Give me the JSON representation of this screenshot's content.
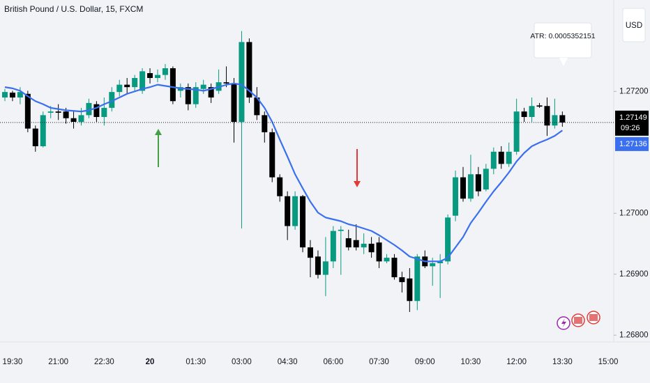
{
  "chart_data": {
    "type": "candlestick",
    "title": "British Pound / U.S. Dollar, 15, FXCM",
    "currency": "USD",
    "annotation": "ATR: 0.0005352151",
    "countdown": "09:26",
    "categories": [
      null,
      "19:30",
      null,
      null,
      null,
      null,
      null,
      "21:00",
      null,
      null,
      null,
      null,
      null,
      "22:30",
      null,
      null,
      null,
      null,
      null,
      "20",
      null,
      null,
      null,
      null,
      null,
      "01:30",
      null,
      null,
      null,
      null,
      null,
      "03:00",
      null,
      null,
      null,
      null,
      null,
      "04:30",
      null,
      null,
      null,
      null,
      null,
      "06:00",
      null,
      null,
      null,
      null,
      null,
      "07:30",
      null,
      null,
      null,
      null,
      null,
      "09:00",
      null,
      null,
      null,
      null,
      null,
      "10:30",
      null,
      null,
      null,
      null,
      null,
      "12:00",
      null,
      null,
      null,
      null,
      null,
      "13:30",
      null,
      null,
      null,
      null,
      null,
      "15:00"
    ],
    "series": [
      {
        "type": "candlestick",
        "up_color": "#089981",
        "down_color": "#000000",
        "open": [
          1.2719,
          1.27198,
          1.2719,
          1.27196,
          1.27139,
          1.2711,
          1.27165,
          1.27167,
          1.27167,
          1.27156,
          1.2715,
          1.27161,
          1.27179,
          1.27158,
          1.27173,
          1.27199,
          1.27211,
          1.27207,
          1.27201,
          1.2723,
          1.27222,
          1.27227,
          1.27238,
          1.27201,
          1.27207,
          1.27179,
          1.27204,
          1.27207,
          1.27201,
          1.27215,
          1.27213,
          1.2715,
          1.27281,
          1.2719,
          1.27161,
          1.27133,
          1.27059,
          1.27028,
          1.26979,
          1.27028,
          1.26944,
          1.26929,
          1.26899,
          1.26921,
          1.26971,
          1.26959,
          1.26956,
          1.26944,
          1.2695,
          1.26952,
          1.26921,
          1.26927,
          1.26895,
          1.26893,
          1.26856,
          1.26929,
          1.26913,
          1.26918,
          1.26921,
          1.26996,
          1.27059,
          1.27024,
          1.27064,
          1.27039,
          1.27073,
          1.27101,
          1.27081,
          1.27101,
          1.27167,
          1.27158,
          1.27177,
          1.27176,
          1.27144,
          1.27161,
          null,
          null,
          null,
          null,
          null,
          null
        ],
        "high": [
          1.27204,
          1.27201,
          1.27207,
          1.27201,
          1.27144,
          1.27167,
          1.27176,
          1.27179,
          1.27173,
          1.27167,
          1.27173,
          1.27188,
          1.27184,
          1.2719,
          1.27207,
          1.27219,
          1.27222,
          1.27227,
          1.27238,
          1.27238,
          1.27236,
          1.27245,
          1.27241,
          1.27213,
          1.27213,
          1.27215,
          1.27219,
          1.27213,
          1.27236,
          1.27241,
          1.27222,
          1.27299,
          1.27287,
          1.27207,
          1.27167,
          1.27139,
          1.27064,
          1.27036,
          1.27036,
          1.2703,
          1.26956,
          1.26939,
          1.26961,
          1.26979,
          1.26979,
          1.26973,
          1.26982,
          1.26967,
          1.26961,
          1.26961,
          1.26933,
          1.26933,
          1.26904,
          1.2691,
          1.26933,
          1.26939,
          1.26927,
          1.26933,
          1.26998,
          1.2707,
          1.27076,
          1.27096,
          1.27076,
          1.27081,
          1.27108,
          1.2711,
          1.27116,
          1.27188,
          1.27173,
          1.2719,
          1.27181,
          1.2719,
          1.27188,
          1.27167,
          null,
          null,
          null,
          null,
          null,
          null
        ],
        "low": [
          1.27184,
          1.27184,
          1.27179,
          1.27133,
          1.27101,
          1.27108,
          1.27156,
          1.27153,
          1.27147,
          1.27139,
          1.27144,
          1.27156,
          1.2715,
          1.27144,
          1.27167,
          1.27192,
          1.27196,
          1.27199,
          1.27196,
          1.27213,
          1.27215,
          1.27219,
          1.27179,
          1.2719,
          1.27169,
          1.27173,
          1.27196,
          1.27181,
          1.27196,
          1.27207,
          1.27116,
          1.26975,
          1.27181,
          1.27153,
          1.27116,
          1.27051,
          1.27019,
          1.26956,
          1.26973,
          1.26936,
          1.26895,
          1.26893,
          1.26864,
          1.2691,
          1.26899,
          1.26939,
          1.26939,
          1.26933,
          1.26927,
          1.2691,
          1.26918,
          1.26891,
          1.2687,
          1.26838,
          1.26841,
          1.2691,
          1.26881,
          1.26861,
          1.26916,
          1.26987,
          1.27019,
          1.27019,
          1.27028,
          1.27036,
          1.27064,
          1.27073,
          1.27076,
          1.27096,
          1.2715,
          1.2715,
          1.27173,
          1.27127,
          1.27139,
          1.27142,
          null,
          null,
          null,
          null,
          null,
          null
        ],
        "close": [
          1.27199,
          1.2719,
          1.27199,
          1.27139,
          1.2711,
          1.27161,
          1.27167,
          1.27165,
          1.27156,
          1.2715,
          1.27161,
          1.27181,
          1.27158,
          1.27173,
          1.27199,
          1.27211,
          1.27207,
          1.27222,
          1.27233,
          1.27222,
          1.27227,
          1.27238,
          1.27184,
          1.27207,
          1.27179,
          1.27207,
          1.27211,
          1.2719,
          1.27215,
          1.27213,
          1.2715,
          1.27281,
          1.2719,
          1.27161,
          1.27133,
          1.27059,
          1.27028,
          1.26979,
          1.27028,
          1.26944,
          1.26927,
          1.26899,
          1.26921,
          1.26971,
          1.26973,
          1.26944,
          1.26944,
          1.2695,
          1.26936,
          1.26921,
          1.26927,
          1.26895,
          1.26887,
          1.26856,
          1.26929,
          1.26913,
          1.26918,
          1.26921,
          1.26993,
          1.27059,
          1.27024,
          1.27064,
          1.27036,
          1.27073,
          1.27101,
          1.27081,
          1.27101,
          1.27167,
          1.27158,
          1.27176,
          1.27175,
          1.27144,
          1.27161,
          1.27149,
          null,
          null,
          null,
          null,
          null,
          null
        ]
      },
      {
        "type": "line",
        "color": "#3a6ff0",
        "values": [
          1.27207,
          1.27205,
          1.27201,
          1.27192,
          1.27184,
          1.27179,
          1.27173,
          1.27171,
          1.27169,
          1.27168,
          1.27167,
          1.27169,
          1.27173,
          1.27179,
          1.27184,
          1.2719,
          1.27196,
          1.272,
          1.27204,
          1.27207,
          1.27211,
          1.27209,
          1.27207,
          1.27205,
          1.27204,
          1.27203,
          1.27201,
          1.27204,
          1.27207,
          1.27211,
          1.27213,
          1.27211,
          1.27201,
          1.2719,
          1.27173,
          1.2715,
          1.27121,
          1.27093,
          1.27064,
          1.27041,
          1.27019,
          1.27001,
          1.26993,
          1.2699,
          1.26987,
          1.26982,
          1.26979,
          1.26975,
          1.26971,
          1.26964,
          1.26956,
          1.26948,
          1.26939,
          1.26929,
          1.26925,
          1.26921,
          1.26921,
          1.26921,
          1.26927,
          1.26944,
          1.26961,
          1.26984,
          1.27001,
          1.27019,
          1.27036,
          1.27051,
          1.27067,
          1.27085,
          1.27099,
          1.2711,
          1.27116,
          1.27121,
          1.27127,
          1.27136,
          null,
          null,
          null,
          null,
          null,
          null
        ]
      }
    ],
    "ylim": [
      1.2679,
      1.2735
    ],
    "yticks": [
      {
        "value": 1.268,
        "label": "1.26800"
      },
      {
        "value": 1.269,
        "label": "1.26900"
      },
      {
        "value": 1.27,
        "label": "1.27000"
      },
      {
        "value": 1.272,
        "label": "1.27200"
      }
    ],
    "grid": false
  }
}
